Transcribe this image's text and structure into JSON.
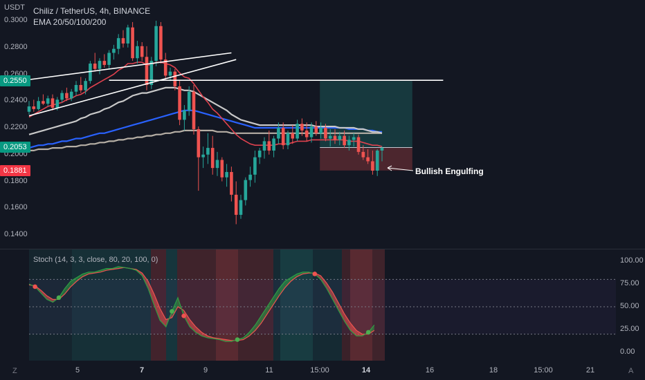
{
  "header": {
    "currency": "USDT",
    "symbol_line": "Chiliz / TetherUS, 4h, BINANCE",
    "ema_line": "EMA 20/50/100/200"
  },
  "price_axis": {
    "ticks": [
      "0.3000",
      "0.2800",
      "0.2600",
      "0.2400",
      "0.2200",
      "0.2000",
      "0.1800",
      "0.1600",
      "0.1400"
    ],
    "tick_values": [
      0.3,
      0.28,
      0.26,
      0.24,
      0.22,
      0.2,
      0.18,
      0.16,
      0.14
    ],
    "badges": [
      {
        "text": "0.2550",
        "value": 0.255,
        "color": "#089981"
      },
      {
        "text": "0.2053",
        "value": 0.2053,
        "color": "#089981"
      },
      {
        "text": "0.1881",
        "value": 0.1881,
        "color": "#f23645"
      }
    ]
  },
  "oscillator": {
    "label": "Stoch (14, 3, 3, close, 80, 20, 100, 0)",
    "ticks": [
      "100.00",
      "75.00",
      "50.00",
      "25.00",
      "0.00"
    ],
    "tick_values": [
      100,
      75,
      50,
      25,
      0
    ]
  },
  "time_axis": {
    "labels": [
      "5",
      "7",
      "9",
      "11",
      "15:00",
      "14",
      "16",
      "18",
      "15:00",
      "21"
    ],
    "bold": [
      "7",
      "14"
    ]
  },
  "annotation": {
    "text": "Bullish Engulfing"
  },
  "corner_left": "Z",
  "corner_right": "A",
  "colors": {
    "background": "#131722",
    "bull": "#26a69a",
    "bear": "#ef5350",
    "ema20": "#e0424f",
    "ema50": "#c9c9c9",
    "ema100": "#2962ff",
    "ema200": "#b7b0a6",
    "trendline": "#ffffff",
    "target_zone": "#26a69a",
    "stop_zone": "#ef5350",
    "stoch_k": "#2f9e44",
    "stoch_d": "#ef5350"
  },
  "chart_data": {
    "type": "candlestick",
    "title": "Chiliz / TetherUS, 4h, BINANCE",
    "ylim": [
      0.13,
      0.3
    ],
    "ohlc": [
      [
        0.232,
        0.24,
        0.23,
        0.236
      ],
      [
        0.236,
        0.241,
        0.232,
        0.234
      ],
      [
        0.234,
        0.243,
        0.233,
        0.24
      ],
      [
        0.24,
        0.245,
        0.237,
        0.238
      ],
      [
        0.238,
        0.244,
        0.236,
        0.242
      ],
      [
        0.242,
        0.245,
        0.233,
        0.235
      ],
      [
        0.235,
        0.243,
        0.233,
        0.241
      ],
      [
        0.241,
        0.248,
        0.239,
        0.246
      ],
      [
        0.246,
        0.25,
        0.24,
        0.242
      ],
      [
        0.242,
        0.249,
        0.24,
        0.247
      ],
      [
        0.247,
        0.255,
        0.244,
        0.252
      ],
      [
        0.252,
        0.258,
        0.246,
        0.248
      ],
      [
        0.248,
        0.257,
        0.245,
        0.255
      ],
      [
        0.255,
        0.27,
        0.253,
        0.268
      ],
      [
        0.268,
        0.276,
        0.262,
        0.264
      ],
      [
        0.264,
        0.272,
        0.26,
        0.27
      ],
      [
        0.27,
        0.275,
        0.265,
        0.267
      ],
      [
        0.267,
        0.278,
        0.264,
        0.276
      ],
      [
        0.276,
        0.282,
        0.271,
        0.279
      ],
      [
        0.279,
        0.29,
        0.275,
        0.287
      ],
      [
        0.287,
        0.293,
        0.28,
        0.283
      ],
      [
        0.283,
        0.297,
        0.28,
        0.295
      ],
      [
        0.295,
        0.299,
        0.27,
        0.272
      ],
      [
        0.272,
        0.285,
        0.268,
        0.281
      ],
      [
        0.281,
        0.284,
        0.27,
        0.273
      ],
      [
        0.273,
        0.281,
        0.248,
        0.252
      ],
      [
        0.252,
        0.273,
        0.249,
        0.27
      ],
      [
        0.27,
        0.3,
        0.266,
        0.296
      ],
      [
        0.296,
        0.299,
        0.268,
        0.271
      ],
      [
        0.271,
        0.276,
        0.256,
        0.259
      ],
      [
        0.259,
        0.265,
        0.255,
        0.262
      ],
      [
        0.262,
        0.264,
        0.248,
        0.251
      ],
      [
        0.251,
        0.255,
        0.222,
        0.226
      ],
      [
        0.226,
        0.237,
        0.218,
        0.233
      ],
      [
        0.233,
        0.251,
        0.229,
        0.247
      ],
      [
        0.247,
        0.252,
        0.215,
        0.219
      ],
      [
        0.219,
        0.221,
        0.173,
        0.198
      ],
      [
        0.198,
        0.206,
        0.19,
        0.2
      ],
      [
        0.2,
        0.216,
        0.193,
        0.205
      ],
      [
        0.205,
        0.214,
        0.185,
        0.19
      ],
      [
        0.19,
        0.202,
        0.184,
        0.196
      ],
      [
        0.196,
        0.198,
        0.18,
        0.183
      ],
      [
        0.183,
        0.193,
        0.176,
        0.187
      ],
      [
        0.187,
        0.191,
        0.165,
        0.17
      ],
      [
        0.17,
        0.18,
        0.148,
        0.155
      ],
      [
        0.155,
        0.17,
        0.152,
        0.166
      ],
      [
        0.166,
        0.183,
        0.162,
        0.181
      ],
      [
        0.181,
        0.191,
        0.176,
        0.185
      ],
      [
        0.185,
        0.203,
        0.179,
        0.198
      ],
      [
        0.198,
        0.205,
        0.193,
        0.203
      ],
      [
        0.203,
        0.213,
        0.197,
        0.21
      ],
      [
        0.21,
        0.218,
        0.2,
        0.203
      ],
      [
        0.203,
        0.214,
        0.198,
        0.212
      ],
      [
        0.212,
        0.224,
        0.208,
        0.22
      ],
      [
        0.22,
        0.224,
        0.204,
        0.207
      ],
      [
        0.207,
        0.218,
        0.204,
        0.216
      ],
      [
        0.216,
        0.222,
        0.208,
        0.212
      ],
      [
        0.212,
        0.226,
        0.21,
        0.223
      ],
      [
        0.223,
        0.227,
        0.214,
        0.218
      ],
      [
        0.218,
        0.224,
        0.21,
        0.213
      ],
      [
        0.213,
        0.224,
        0.209,
        0.221
      ],
      [
        0.221,
        0.225,
        0.214,
        0.216
      ],
      [
        0.216,
        0.224,
        0.212,
        0.22
      ],
      [
        0.22,
        0.223,
        0.21,
        0.212
      ],
      [
        0.212,
        0.219,
        0.206,
        0.214
      ],
      [
        0.214,
        0.219,
        0.208,
        0.211
      ],
      [
        0.211,
        0.217,
        0.207,
        0.214
      ],
      [
        0.214,
        0.218,
        0.205,
        0.207
      ],
      [
        0.207,
        0.214,
        0.203,
        0.211
      ],
      [
        0.211,
        0.216,
        0.206,
        0.213
      ],
      [
        0.213,
        0.215,
        0.2,
        0.202
      ],
      [
        0.202,
        0.207,
        0.196,
        0.198
      ],
      [
        0.198,
        0.204,
        0.193,
        0.195
      ],
      [
        0.195,
        0.203,
        0.185,
        0.188
      ],
      [
        0.188,
        0.204,
        0.184,
        0.203
      ],
      [
        0.203,
        0.206,
        0.195,
        0.205
      ]
    ],
    "ema20": [
      0.228,
      0.23,
      0.232,
      0.234,
      0.236,
      0.237,
      0.238,
      0.239,
      0.241,
      0.242,
      0.244,
      0.245,
      0.247,
      0.25,
      0.252,
      0.254,
      0.256,
      0.258,
      0.26,
      0.263,
      0.265,
      0.268,
      0.268,
      0.269,
      0.269,
      0.267,
      0.267,
      0.269,
      0.269,
      0.268,
      0.267,
      0.265,
      0.261,
      0.258,
      0.257,
      0.253,
      0.248,
      0.243,
      0.239,
      0.234,
      0.231,
      0.227,
      0.223,
      0.219,
      0.215,
      0.212,
      0.21,
      0.208,
      0.207,
      0.207,
      0.207,
      0.207,
      0.207,
      0.208,
      0.208,
      0.208,
      0.209,
      0.21,
      0.21,
      0.21,
      0.211,
      0.211,
      0.211,
      0.211,
      0.211,
      0.211,
      0.211,
      0.211,
      0.21,
      0.21,
      0.21,
      0.209,
      0.208,
      0.207,
      0.207,
      0.206
    ],
    "ema50": [
      0.215,
      0.216,
      0.217,
      0.218,
      0.219,
      0.22,
      0.221,
      0.222,
      0.223,
      0.224,
      0.225,
      0.227,
      0.228,
      0.23,
      0.231,
      0.232,
      0.234,
      0.235,
      0.237,
      0.239,
      0.24,
      0.242,
      0.244,
      0.245,
      0.246,
      0.246,
      0.247,
      0.248,
      0.249,
      0.25,
      0.25,
      0.25,
      0.249,
      0.248,
      0.248,
      0.247,
      0.245,
      0.243,
      0.241,
      0.239,
      0.237,
      0.235,
      0.233,
      0.23,
      0.228,
      0.226,
      0.225,
      0.224,
      0.223,
      0.222,
      0.222,
      0.222,
      0.222,
      0.222,
      0.222,
      0.222,
      0.222,
      0.222,
      0.222,
      0.222,
      0.222,
      0.221,
      0.221,
      0.221,
      0.221,
      0.221,
      0.22,
      0.22,
      0.22,
      0.22,
      0.219,
      0.219,
      0.218,
      0.217,
      0.217,
      0.216
    ],
    "ema100": [
      0.205,
      0.206,
      0.207,
      0.207,
      0.208,
      0.208,
      0.209,
      0.21,
      0.21,
      0.211,
      0.212,
      0.212,
      0.213,
      0.214,
      0.215,
      0.216,
      0.216,
      0.217,
      0.218,
      0.219,
      0.22,
      0.221,
      0.222,
      0.223,
      0.224,
      0.225,
      0.226,
      0.227,
      0.228,
      0.229,
      0.23,
      0.231,
      0.232,
      0.233,
      0.233,
      0.233,
      0.232,
      0.231,
      0.23,
      0.229,
      0.228,
      0.227,
      0.226,
      0.225,
      0.224,
      0.223,
      0.222,
      0.221,
      0.22,
      0.22,
      0.22,
      0.22,
      0.22,
      0.22,
      0.22,
      0.22,
      0.22,
      0.22,
      0.22,
      0.22,
      0.22,
      0.22,
      0.22,
      0.22,
      0.22,
      0.22,
      0.22,
      0.22,
      0.219,
      0.219,
      0.219,
      0.219,
      0.218,
      0.218,
      0.217,
      0.217
    ],
    "ema200": [
      0.203,
      0.203,
      0.204,
      0.204,
      0.204,
      0.205,
      0.205,
      0.205,
      0.206,
      0.206,
      0.206,
      0.207,
      0.207,
      0.208,
      0.208,
      0.209,
      0.209,
      0.21,
      0.21,
      0.211,
      0.211,
      0.212,
      0.212,
      0.213,
      0.213,
      0.214,
      0.214,
      0.215,
      0.215,
      0.216,
      0.216,
      0.217,
      0.217,
      0.218,
      0.218,
      0.218,
      0.218,
      0.218,
      0.218,
      0.218,
      0.217,
      0.217,
      0.217,
      0.216,
      0.216,
      0.216,
      0.216,
      0.216,
      0.216,
      0.216,
      0.216,
      0.216,
      0.216,
      0.216,
      0.216,
      0.216,
      0.216,
      0.216,
      0.216,
      0.216,
      0.216,
      0.216,
      0.216,
      0.216,
      0.216,
      0.216,
      0.216,
      0.216,
      0.216,
      0.216,
      0.216,
      0.216,
      0.216,
      0.216,
      0.216,
      0.216
    ],
    "trendlines": [
      {
        "from": [
          0,
          0.256
        ],
        "to": [
          43,
          0.276
        ]
      },
      {
        "from": [
          0,
          0.229
        ],
        "to": [
          44,
          0.271
        ]
      },
      {
        "from": [
          17,
          0.2555
        ],
        "to": [
          88,
          0.2555
        ]
      }
    ],
    "long_position": {
      "start_index": 64,
      "end_index": 76,
      "entry": 0.2053,
      "target": 0.255,
      "stop": 0.1881
    },
    "stoch_k": [
      75,
      72,
      65,
      58,
      55,
      60,
      70,
      78,
      82,
      86,
      88,
      88,
      90,
      92,
      92,
      94,
      93,
      92,
      90,
      84,
      70,
      52,
      35,
      28,
      45,
      60,
      40,
      28,
      22,
      18,
      16,
      15,
      14,
      12,
      12,
      14,
      16,
      22,
      30,
      40,
      50,
      60,
      70,
      78,
      82,
      86,
      88,
      88,
      86,
      80,
      70,
      58,
      46,
      34,
      24,
      18,
      18,
      22,
      30
    ],
    "stoch_d": [
      74,
      73,
      68,
      62,
      58,
      58,
      64,
      72,
      78,
      83,
      86,
      87,
      88,
      90,
      91,
      92,
      93,
      92,
      91,
      87,
      78,
      64,
      48,
      36,
      38,
      50,
      46,
      36,
      28,
      22,
      18,
      16,
      15,
      14,
      13,
      13,
      14,
      18,
      24,
      32,
      42,
      52,
      62,
      71,
      78,
      83,
      86,
      87,
      87,
      84,
      76,
      66,
      54,
      42,
      32,
      24,
      20,
      20,
      24
    ],
    "stoch_ylim": [
      0,
      100
    ],
    "stoch_levels": [
      80,
      50,
      20
    ]
  }
}
